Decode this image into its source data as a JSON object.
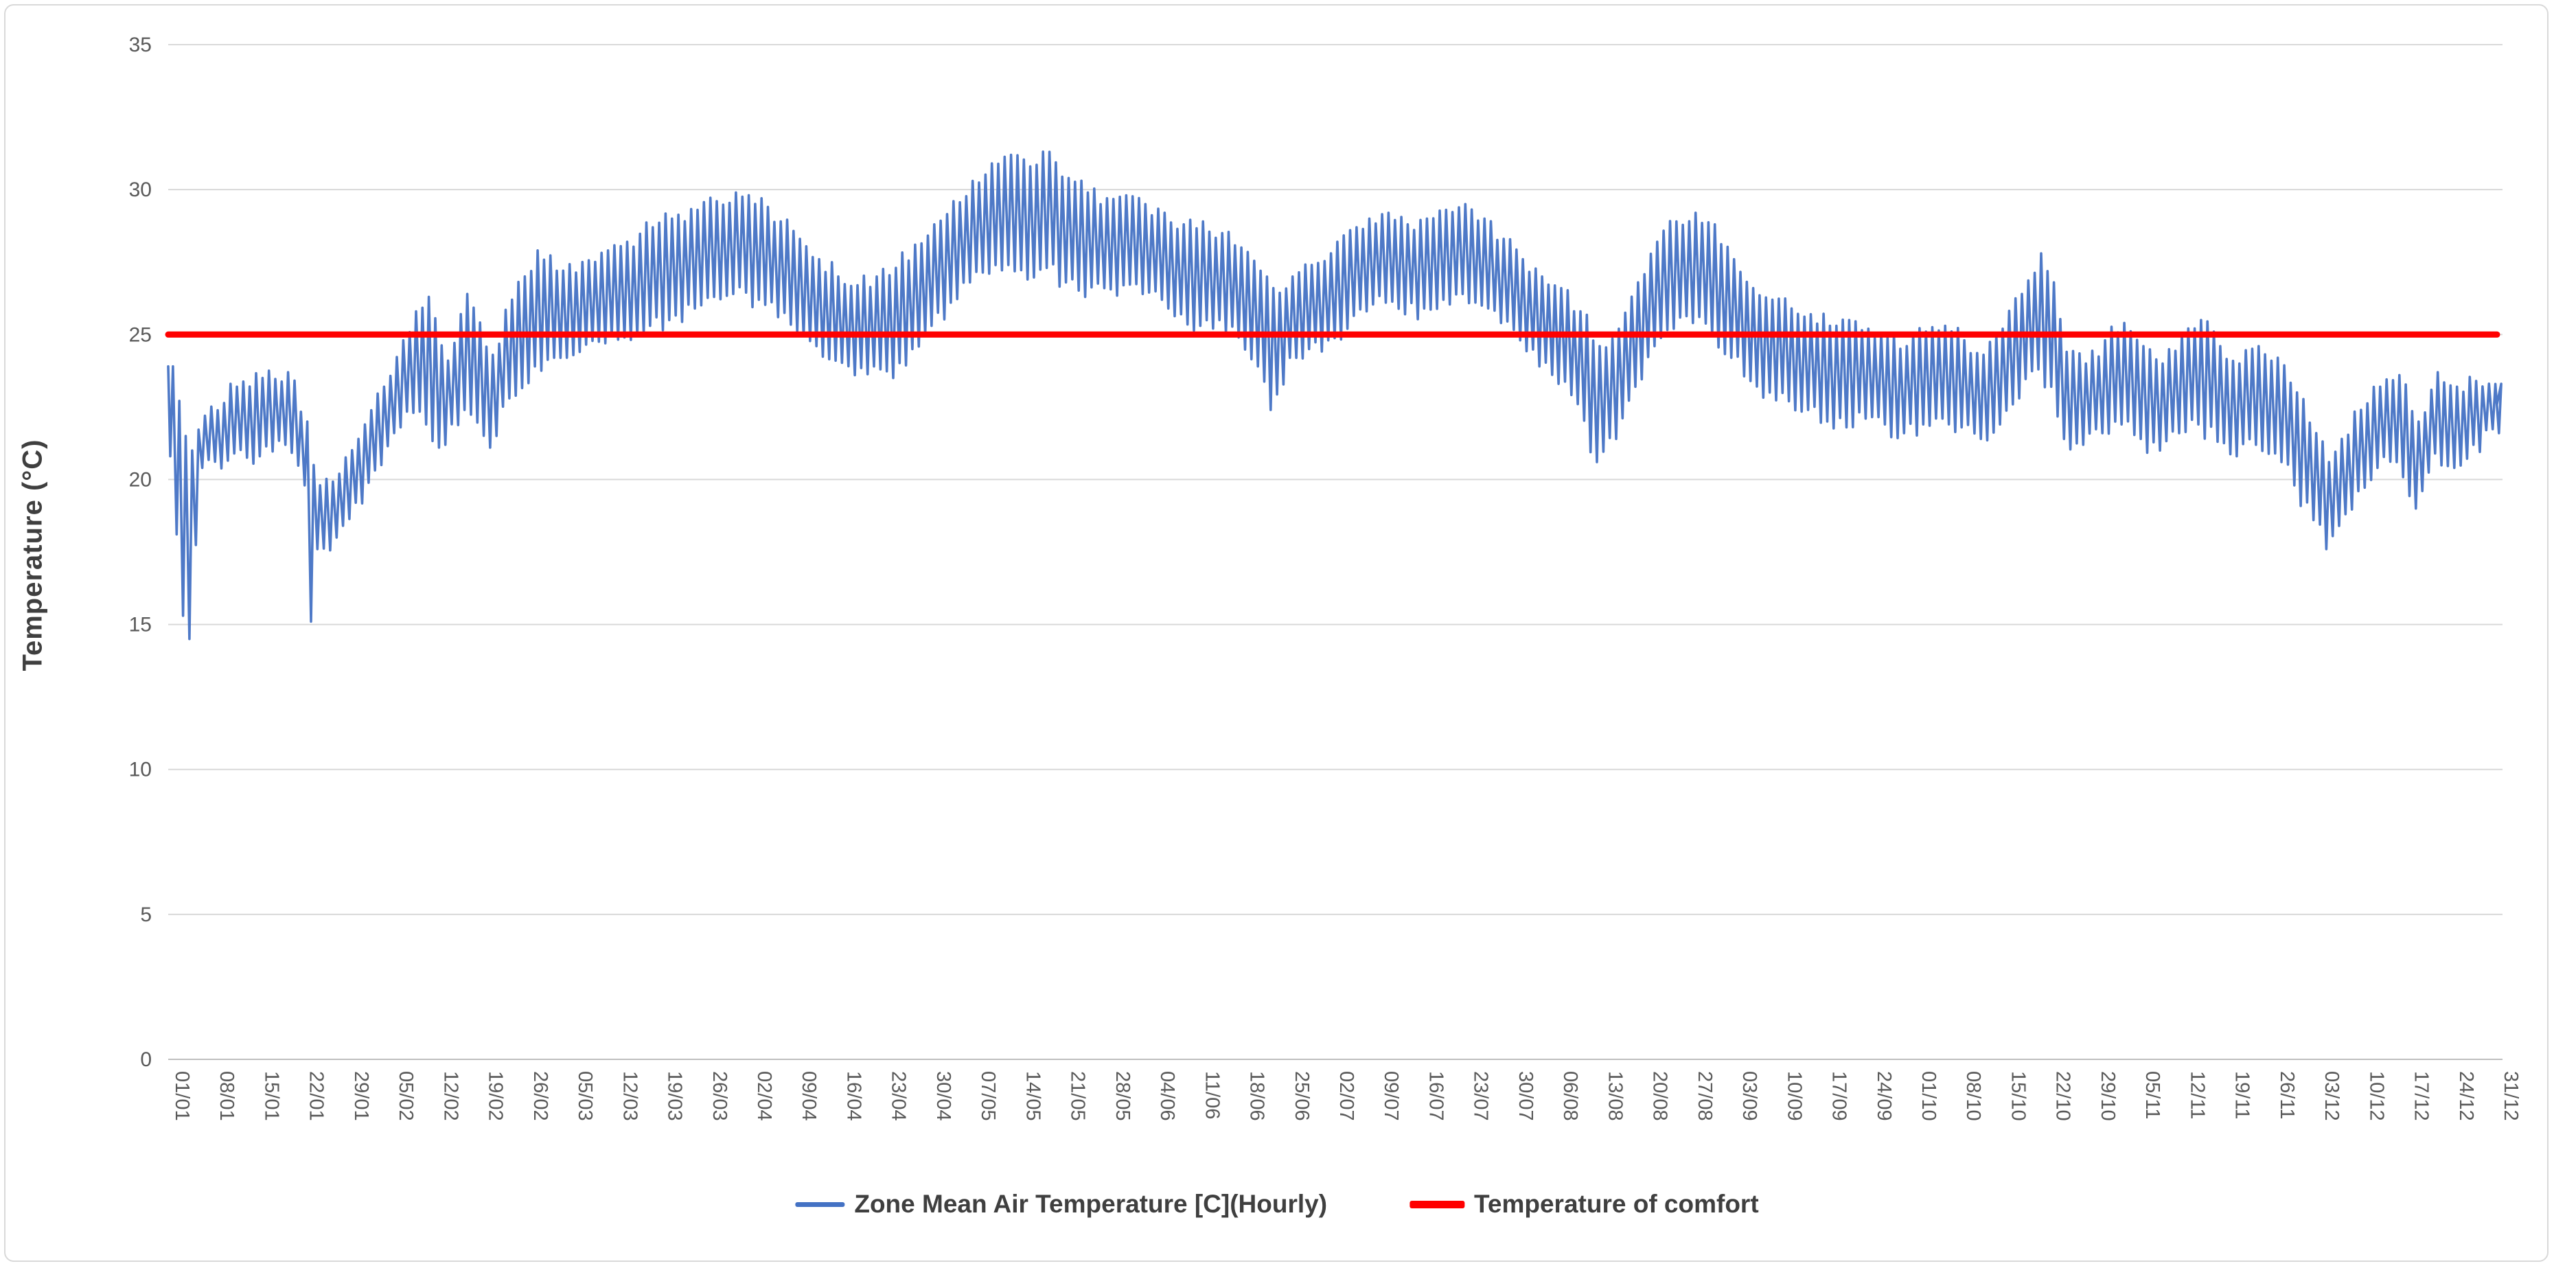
{
  "y_axis": {
    "title": "Temperature (°C)",
    "tick_labels": [
      "0",
      "5",
      "10",
      "15",
      "20",
      "25",
      "30",
      "35"
    ],
    "min": 0,
    "max": 35
  },
  "x_axis": {
    "tick_labels": [
      "01/01",
      "08/01",
      "15/01",
      "22/01",
      "29/01",
      "05/02",
      "12/02",
      "19/02",
      "26/02",
      "05/03",
      "12/03",
      "19/03",
      "26/03",
      "02/04",
      "09/04",
      "16/04",
      "23/04",
      "30/04",
      "07/05",
      "14/05",
      "21/05",
      "28/05",
      "04/06",
      "11/06",
      "18/06",
      "25/06",
      "02/07",
      "09/07",
      "16/07",
      "23/07",
      "30/07",
      "06/08",
      "13/08",
      "20/08",
      "27/08",
      "03/09",
      "10/09",
      "17/09",
      "24/09",
      "01/10",
      "08/10",
      "15/10",
      "22/10",
      "29/10",
      "05/11",
      "12/11",
      "19/11",
      "26/11",
      "03/12",
      "10/12",
      "17/12",
      "24/12",
      "31/12"
    ]
  },
  "legend": {
    "items": [
      {
        "label": "Zone Mean Air Temperature [C](Hourly)",
        "color": "#4472C4",
        "swatch_w": 72,
        "swatch_h": 7
      },
      {
        "label": "Temperature of comfort",
        "color": "#FF0000",
        "swatch_w": 80,
        "swatch_h": 11
      }
    ]
  },
  "chart_data": {
    "type": "line",
    "title": "",
    "xlabel": "",
    "ylabel": "Temperature (°C)",
    "ylim": [
      0,
      35
    ],
    "y_gridlines": [
      0,
      5,
      10,
      15,
      20,
      25,
      30,
      35
    ],
    "grid": "horizontal",
    "legend_position": "bottom",
    "x_unit": "day of year (hourly data, ticks weekly)",
    "x_range_days": 365,
    "categories": [
      "01/01",
      "08/01",
      "15/01",
      "22/01",
      "29/01",
      "05/02",
      "12/02",
      "19/02",
      "26/02",
      "05/03",
      "12/03",
      "19/03",
      "26/03",
      "02/04",
      "09/04",
      "16/04",
      "23/04",
      "30/04",
      "07/05",
      "14/05",
      "21/05",
      "28/05",
      "04/06",
      "11/06",
      "18/06",
      "25/06",
      "02/07",
      "09/07",
      "16/07",
      "23/07",
      "30/07",
      "06/08",
      "13/08",
      "20/08",
      "27/08",
      "03/09",
      "10/09",
      "17/09",
      "24/09",
      "01/10",
      "08/10",
      "15/10",
      "22/10",
      "29/10",
      "05/11",
      "12/11",
      "19/11",
      "26/11",
      "03/12",
      "10/12",
      "17/12",
      "24/12",
      "31/12"
    ],
    "series": [
      {
        "name": "Zone Mean Air Temperature [C](Hourly)",
        "color": "#4472C4",
        "line_width": 3.6,
        "render": "daily sawtooth (hourly series): one min and one max vertex per day, interpolated from envelope anchors",
        "start_value": 23.9,
        "end_value": 22.6,
        "peak_value": 31.3,
        "min_value": 14.5,
        "daily_envelope_anchors": [
          [
            0,
            20.8,
            23.9
          ],
          [
            2,
            15.3,
            21.5
          ],
          [
            3,
            14.5,
            21.0
          ],
          [
            5,
            20.4,
            22.2
          ],
          [
            10,
            20.9,
            23.2
          ],
          [
            14,
            20.8,
            23.5
          ],
          [
            18,
            21.2,
            23.7
          ],
          [
            21,
            19.8,
            22.0
          ],
          [
            22,
            15.1,
            20.5
          ],
          [
            23,
            17.6,
            19.8
          ],
          [
            26,
            18.0,
            20.2
          ],
          [
            29,
            19.2,
            21.4
          ],
          [
            33,
            20.5,
            23.2
          ],
          [
            36,
            21.8,
            24.8
          ],
          [
            38,
            22.3,
            25.8
          ],
          [
            40,
            21.9,
            26.3
          ],
          [
            43,
            21.2,
            24.1
          ],
          [
            46,
            22.4,
            26.4
          ],
          [
            50,
            21.1,
            24.3
          ],
          [
            53,
            22.8,
            26.2
          ],
          [
            57,
            23.9,
            27.9
          ],
          [
            60,
            24.2,
            27.2
          ],
          [
            64,
            24.4,
            27.5
          ],
          [
            68,
            24.7,
            27.9
          ],
          [
            71,
            24.9,
            28.2
          ],
          [
            75,
            25.3,
            28.7
          ],
          [
            78,
            25.5,
            29.0
          ],
          [
            82,
            25.9,
            29.3
          ],
          [
            85,
            26.3,
            29.6
          ],
          [
            88,
            26.4,
            29.9
          ],
          [
            92,
            26.2,
            29.7
          ],
          [
            95,
            25.6,
            28.9
          ],
          [
            98,
            25.1,
            28.3
          ],
          [
            101,
            24.6,
            27.6
          ],
          [
            104,
            24.1,
            27.0
          ],
          [
            107,
            23.6,
            26.7
          ],
          [
            110,
            23.9,
            27.0
          ],
          [
            113,
            23.5,
            27.3
          ],
          [
            116,
            24.5,
            28.1
          ],
          [
            119,
            25.3,
            28.8
          ],
          [
            122,
            26.1,
            29.6
          ],
          [
            125,
            26.8,
            30.3
          ],
          [
            128,
            27.1,
            30.9
          ],
          [
            131,
            27.4,
            31.2
          ],
          [
            134,
            26.9,
            30.8
          ],
          [
            137,
            27.3,
            31.3
          ],
          [
            140,
            26.8,
            30.4
          ],
          [
            143,
            26.3,
            29.9
          ],
          [
            146,
            26.6,
            29.7
          ],
          [
            149,
            26.7,
            29.8
          ],
          [
            152,
            26.4,
            29.5
          ],
          [
            155,
            26.2,
            29.2
          ],
          [
            158,
            25.7,
            28.8
          ],
          [
            161,
            25.3,
            28.9
          ],
          [
            164,
            25.5,
            28.5
          ],
          [
            167,
            24.9,
            28.0
          ],
          [
            170,
            23.9,
            27.2
          ],
          [
            172,
            22.4,
            26.6
          ],
          [
            175,
            24.2,
            27.0
          ],
          [
            178,
            24.5,
            27.4
          ],
          [
            181,
            24.8,
            27.8
          ],
          [
            184,
            25.2,
            28.6
          ],
          [
            187,
            25.8,
            29.0
          ],
          [
            190,
            26.1,
            29.2
          ],
          [
            193,
            25.7,
            28.8
          ],
          [
            196,
            25.9,
            29.0
          ],
          [
            199,
            26.2,
            29.3
          ],
          [
            202,
            26.4,
            29.5
          ],
          [
            205,
            26.0,
            29.0
          ],
          [
            208,
            25.4,
            28.3
          ],
          [
            211,
            24.8,
            27.6
          ],
          [
            214,
            23.9,
            27.0
          ],
          [
            217,
            23.3,
            26.6
          ],
          [
            220,
            22.6,
            25.8
          ],
          [
            223,
            20.6,
            24.6
          ],
          [
            226,
            21.4,
            25.2
          ],
          [
            229,
            23.2,
            26.8
          ],
          [
            232,
            24.6,
            28.2
          ],
          [
            235,
            25.2,
            28.9
          ],
          [
            238,
            25.4,
            29.2
          ],
          [
            241,
            25.0,
            28.8
          ],
          [
            244,
            24.2,
            27.6
          ],
          [
            247,
            23.4,
            26.6
          ],
          [
            250,
            23.0,
            26.2
          ],
          [
            253,
            22.7,
            25.9
          ],
          [
            256,
            22.4,
            25.7
          ],
          [
            259,
            22.0,
            25.3
          ],
          [
            262,
            21.8,
            25.5
          ],
          [
            265,
            22.1,
            25.2
          ],
          [
            268,
            21.9,
            24.9
          ],
          [
            271,
            21.6,
            24.6
          ],
          [
            274,
            21.9,
            25.1
          ],
          [
            277,
            22.1,
            25.3
          ],
          [
            280,
            21.8,
            24.8
          ],
          [
            283,
            21.4,
            24.3
          ],
          [
            286,
            21.9,
            25.2
          ],
          [
            289,
            22.8,
            26.4
          ],
          [
            292,
            23.8,
            27.8
          ],
          [
            294,
            23.2,
            26.8
          ],
          [
            296,
            21.4,
            24.4
          ],
          [
            299,
            21.2,
            24.0
          ],
          [
            302,
            21.6,
            24.8
          ],
          [
            305,
            21.9,
            25.4
          ],
          [
            308,
            21.4,
            24.6
          ],
          [
            311,
            21.0,
            24.0
          ],
          [
            314,
            21.6,
            25.0
          ],
          [
            317,
            21.9,
            25.5
          ],
          [
            320,
            21.3,
            24.6
          ],
          [
            323,
            20.8,
            24.0
          ],
          [
            326,
            21.2,
            24.6
          ],
          [
            329,
            20.9,
            24.2
          ],
          [
            332,
            19.8,
            23.0
          ],
          [
            335,
            18.6,
            21.6
          ],
          [
            337,
            17.6,
            20.6
          ],
          [
            339,
            18.4,
            21.4
          ],
          [
            342,
            19.6,
            22.4
          ],
          [
            345,
            20.4,
            23.2
          ],
          [
            348,
            20.6,
            23.6
          ],
          [
            351,
            19.0,
            22.0
          ],
          [
            354,
            20.9,
            23.7
          ],
          [
            357,
            20.4,
            23.2
          ],
          [
            360,
            21.2,
            23.4
          ],
          [
            364,
            21.6,
            23.3
          ]
        ]
      },
      {
        "name": "Temperature of comfort",
        "color": "#FF0000",
        "line_width": 9,
        "constant_value": 25
      }
    ]
  },
  "colors": {
    "grid": "#d9d9d9",
    "axis_line": "#bfbfbf",
    "tick_text": "#595959",
    "title_text": "#3f3f3f",
    "series_blue": "#4472C4",
    "comfort_red": "#FF0000",
    "frame_border": "#d9d9d9"
  }
}
